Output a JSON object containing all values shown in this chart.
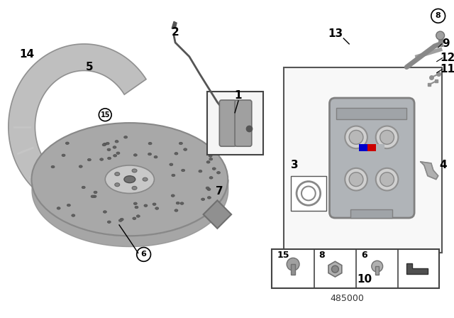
{
  "bg_color": "#ffffff",
  "part_number": "485000",
  "silver": "#b0b0b0",
  "dark_silver": "#888888",
  "light_silver": "#d0d0d0",
  "darker": "#707070",
  "caliper_color": "#b0b4b8",
  "shield_color": "#b8b8b8",
  "disc_color": "#a8a8a8",
  "labels": [
    "1",
    "2",
    "3",
    "4",
    "5",
    "6",
    "7",
    "8",
    "9",
    "10",
    "11",
    "12",
    "13",
    "14",
    "15"
  ]
}
